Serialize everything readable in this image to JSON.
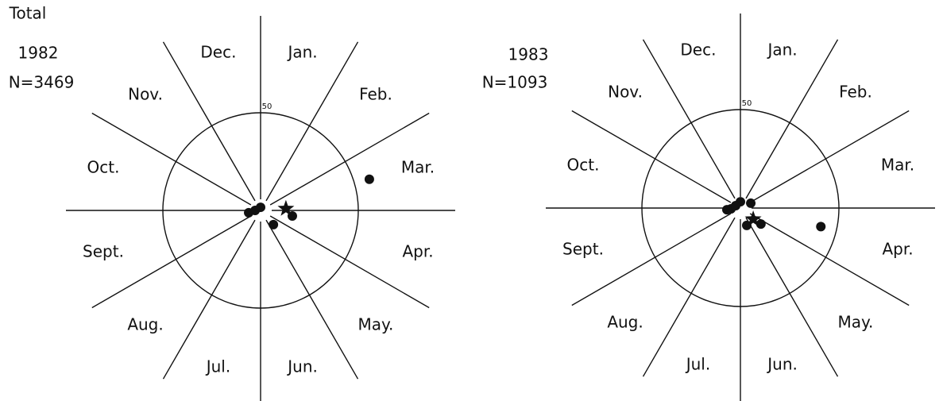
{
  "chart_data": [
    {
      "type": "polar-scatter",
      "title": "Total",
      "subtitle": "1982",
      "annotation": "N=3469",
      "categories": [
        "Jan.",
        "Feb.",
        "Mar.",
        "Apr.",
        "May.",
        "Jun.",
        "Jul.",
        "Aug.",
        "Sept.",
        "Oct.",
        "Nov.",
        "Dec."
      ],
      "rlim": [
        0,
        50
      ],
      "rticks": [
        50
      ],
      "color": "#111111",
      "x": [
        74,
        100,
        138,
        0,
        270,
        259
      ],
      "values": [
        57.9,
        16.5,
        9.8,
        1.6,
        2.8,
        6.2
      ],
      "mean": {
        "x": 86,
        "values": 13
      }
    },
    {
      "type": "polar-scatter",
      "subtitle": "1983",
      "annotation": "N=1093",
      "categories": [
        "Jan.",
        "Feb.",
        "Mar.",
        "Apr.",
        "May.",
        "Jun.",
        "Jul.",
        "Aug.",
        "Sept.",
        "Oct.",
        "Nov.",
        "Dec."
      ],
      "rlim": [
        0,
        50
      ],
      "rticks": [
        50
      ],
      "color": "#111111",
      "x": [
        103,
        128,
        160,
        65,
        0,
        265,
        263,
        297
      ],
      "values": [
        41.9,
        13.2,
        9.4,
        5.8,
        3.2,
        4.8,
        6.9,
        2.7
      ],
      "mean": {
        "x": 131,
        "values": 8.6
      }
    }
  ]
}
